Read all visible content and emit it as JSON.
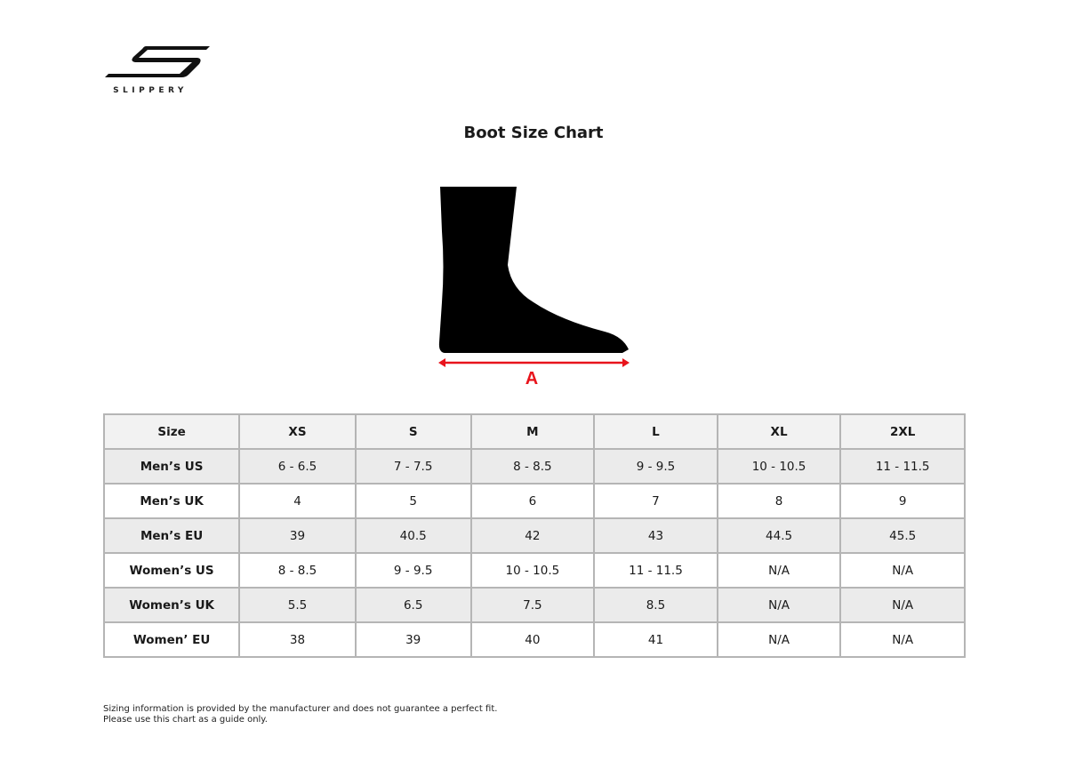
{
  "brand": {
    "name": "SLIPPERY",
    "logo_icon": "slippery-s-logo"
  },
  "title": "Boot Size Chart",
  "diagram": {
    "measure_label": "A",
    "arrow_color": "#e8141c",
    "boot_color": "#000000"
  },
  "table": {
    "headers": [
      "Size",
      "XS",
      "S",
      "M",
      "L",
      "XL",
      "2XL"
    ],
    "rows": [
      {
        "label": "Men’s US",
        "values": [
          "6 - 6.5",
          "7 - 7.5",
          "8 - 8.5",
          "9 - 9.5",
          "10 - 10.5",
          "11 - 11.5"
        ]
      },
      {
        "label": "Men’s UK",
        "values": [
          "4",
          "5",
          "6",
          "7",
          "8",
          "9"
        ]
      },
      {
        "label": "Men’s EU",
        "values": [
          "39",
          "40.5",
          "42",
          "43",
          "44.5",
          "45.5"
        ]
      },
      {
        "label": "Women’s US",
        "values": [
          "8 - 8.5",
          "9 - 9.5",
          "10 - 10.5",
          "11 - 11.5",
          "N/A",
          "N/A"
        ]
      },
      {
        "label": "Women’s UK",
        "values": [
          "5.5",
          "6.5",
          "7.5",
          "8.5",
          "N/A",
          "N/A"
        ]
      },
      {
        "label": "Women’ EU",
        "values": [
          "38",
          "39",
          "40",
          "41",
          "N/A",
          "N/A"
        ]
      }
    ]
  },
  "footer": {
    "line1": "Sizing information is provided by the manufacturer and does not guarantee a perfect fit.",
    "line2": "Please use this chart as a guide only."
  }
}
